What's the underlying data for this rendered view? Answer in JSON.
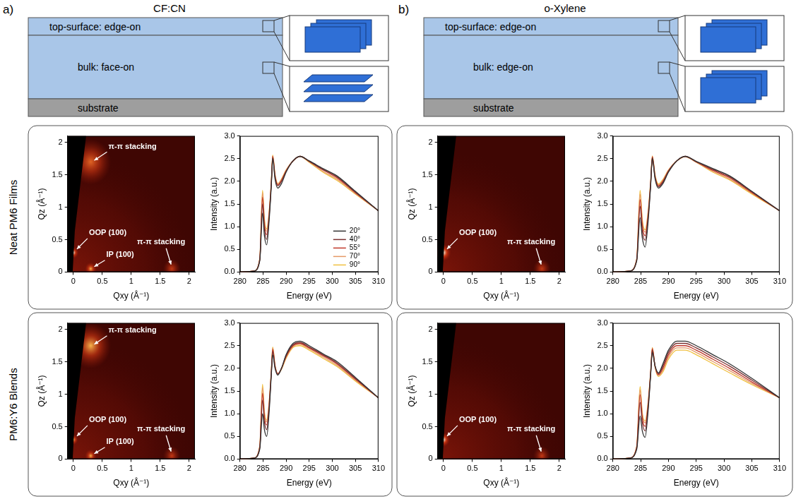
{
  "figure": {
    "panels": [
      {
        "letter": "a)",
        "title": "CF:CN",
        "layers": {
          "top": "top-surface: edge-on",
          "bulk": "bulk: face-on",
          "substrate": "substrate"
        }
      },
      {
        "letter": "b)",
        "title": "o-Xylene",
        "layers": {
          "top": "top-surface: edge-on",
          "bulk": "bulk: edge-on",
          "substrate": "substrate"
        }
      }
    ],
    "row_labels": [
      "Neat PM6 Films",
      "PM6:Y6 Blends"
    ]
  },
  "chart_data": [
    {
      "type": "scattering_map",
      "x_label": "Qxy (Å⁻¹)",
      "y_label": "Qz (Å⁻¹)",
      "xlim": [
        -0.1,
        2.1
      ],
      "ylim": [
        0,
        2.1
      ],
      "xticks": [
        0,
        0.5,
        1,
        1.5,
        2
      ],
      "yticks": [
        0,
        0.5,
        1,
        1.5,
        2
      ],
      "grid": false,
      "peaks": [
        {
          "label": "π-π stacking",
          "qxy": 0.3,
          "qz": 1.7,
          "width": 0.35,
          "intensity": 0.55
        },
        {
          "label": "OOP (100)",
          "qxy": 0,
          "qz": 0.3,
          "width": 0.09,
          "intensity": 0.9
        },
        {
          "label": "IP (100)",
          "qxy": 0.3,
          "qz": 0.05,
          "width": 0.1,
          "intensity": 0.7
        },
        {
          "label": "π-π stacking",
          "qxy": 1.7,
          "qz": 0.05,
          "width": 0.15,
          "intensity": 0.3
        }
      ]
    },
    {
      "type": "line",
      "x_label": "Energy (eV)",
      "y_label": "Intensity (a.u.)",
      "xlim": [
        280,
        310
      ],
      "xticks": [
        280,
        285,
        290,
        295,
        300,
        305,
        310
      ],
      "ylim": [
        0,
        3
      ],
      "yticks": [
        {
          "value": 0,
          "label": "0.0"
        },
        {
          "value": 0.5,
          "label": "0.5"
        },
        {
          "value": 1,
          "label": "1.0"
        },
        {
          "value": 1.5,
          "label": "1.5"
        },
        {
          "value": 2,
          "label": "2.0"
        },
        {
          "value": 2.5,
          "label": "2.5"
        },
        {
          "value": 3,
          "label": "3.0"
        }
      ],
      "grid": false,
      "legend": "bottom right",
      "x": [
        280,
        283,
        284.3,
        284.9,
        285.3,
        285.8,
        286.3,
        286.8,
        287.1,
        287.6,
        288.2,
        289,
        290,
        291.5,
        293,
        295,
        298,
        301,
        305,
        310
      ],
      "series": [
        {
          "name": "20°",
          "color": "#333333",
          "values": [
            0,
            0.02,
            0.25,
            1.3,
            0.8,
            0.6,
            1.1,
            1.9,
            2.5,
            2.05,
            1.85,
            1.95,
            2.2,
            2.45,
            2.55,
            2.45,
            2.28,
            2.12,
            1.78,
            1.35
          ]
        },
        {
          "name": "40°",
          "color": "#7a3030",
          "values": [
            0,
            0.02,
            0.27,
            1.5,
            0.95,
            0.72,
            1.18,
            1.95,
            2.52,
            2.1,
            1.9,
            2.0,
            2.22,
            2.45,
            2.55,
            2.44,
            2.26,
            2.1,
            1.76,
            1.35
          ]
        },
        {
          "name": "55°",
          "color": "#c0392b",
          "values": [
            0,
            0.02,
            0.28,
            1.65,
            1.05,
            0.82,
            1.23,
            1.97,
            2.55,
            2.12,
            1.92,
            2.02,
            2.23,
            2.45,
            2.55,
            2.44,
            2.25,
            2.08,
            1.75,
            1.35
          ]
        },
        {
          "name": "70°",
          "color": "#e59866",
          "values": [
            0,
            0.02,
            0.29,
            1.75,
            1.12,
            0.9,
            1.27,
            1.99,
            2.56,
            2.14,
            1.94,
            2.04,
            2.24,
            2.45,
            2.55,
            2.43,
            2.22,
            2.05,
            1.73,
            1.35
          ]
        },
        {
          "name": "90°",
          "color": "#f0c040",
          "values": [
            0,
            0.02,
            0.3,
            1.8,
            1.18,
            0.95,
            1.3,
            2.0,
            2.58,
            2.15,
            1.95,
            2.05,
            2.25,
            2.45,
            2.55,
            2.42,
            2.2,
            2.02,
            1.72,
            1.35
          ]
        }
      ]
    },
    {
      "type": "scattering_map",
      "x_label": "Qxy (Å⁻¹)",
      "y_label": "Qz (Å⁻¹)",
      "xlim": [
        -0.1,
        2.1
      ],
      "ylim": [
        0,
        2.1
      ],
      "xticks": [
        0,
        0.5,
        1,
        1.5,
        2
      ],
      "yticks": [
        0,
        0.5,
        1,
        1.5,
        2
      ],
      "grid": false,
      "peaks": [
        {
          "label": "OOP (100)",
          "qxy": 0,
          "qz": 0.3,
          "width": 0.13,
          "intensity": 1.0
        },
        {
          "label": "π-π stacking",
          "qxy": 1.7,
          "qz": 0.05,
          "width": 0.15,
          "intensity": 0.3
        }
      ]
    },
    {
      "type": "line",
      "x_label": "Energy (eV)",
      "y_label": "Intensity (a.u.)",
      "xlim": [
        280,
        310
      ],
      "xticks": [
        280,
        285,
        290,
        295,
        300,
        305,
        310
      ],
      "ylim": [
        0,
        3
      ],
      "yticks": [
        {
          "value": 0,
          "label": "0.0"
        },
        {
          "value": 0.5,
          "label": "0.5"
        },
        {
          "value": 1,
          "label": "1.0"
        },
        {
          "value": 1.5,
          "label": "1.5"
        },
        {
          "value": 2,
          "label": "2.0"
        },
        {
          "value": 2.5,
          "label": "2.5"
        },
        {
          "value": 3,
          "label": "3.0"
        }
      ],
      "grid": false,
      "x": [
        280,
        283,
        284.3,
        284.9,
        285.3,
        285.8,
        286.3,
        286.8,
        287.1,
        287.6,
        288.2,
        289,
        290,
        291.5,
        293,
        295,
        298,
        301,
        305,
        310
      ],
      "series": [
        {
          "color": "#333333",
          "values": [
            0,
            0.02,
            0.25,
            1.2,
            0.75,
            0.55,
            1.05,
            1.9,
            2.5,
            2.05,
            1.85,
            1.95,
            2.2,
            2.45,
            2.55,
            2.44,
            2.28,
            2.12,
            1.78,
            1.35
          ]
        },
        {
          "color": "#7a3030",
          "values": [
            0,
            0.02,
            0.27,
            1.45,
            0.9,
            0.7,
            1.15,
            1.93,
            2.52,
            2.08,
            1.88,
            1.98,
            2.22,
            2.45,
            2.55,
            2.43,
            2.26,
            2.1,
            1.77,
            1.35
          ]
        },
        {
          "color": "#c0392b",
          "values": [
            0,
            0.02,
            0.28,
            1.6,
            1.02,
            0.8,
            1.2,
            1.96,
            2.54,
            2.1,
            1.9,
            2.0,
            2.23,
            2.45,
            2.55,
            2.43,
            2.24,
            2.08,
            1.75,
            1.35
          ]
        },
        {
          "color": "#e59866",
          "values": [
            0,
            0.02,
            0.29,
            1.72,
            1.1,
            0.88,
            1.25,
            1.98,
            2.55,
            2.12,
            1.92,
            2.02,
            2.24,
            2.45,
            2.54,
            2.42,
            2.22,
            2.05,
            1.74,
            1.35
          ]
        },
        {
          "color": "#f0c040",
          "values": [
            0,
            0.02,
            0.3,
            1.8,
            1.16,
            0.93,
            1.28,
            2.0,
            2.56,
            2.14,
            1.94,
            2.04,
            2.25,
            2.45,
            2.54,
            2.42,
            2.2,
            2.03,
            1.72,
            1.35
          ]
        }
      ]
    },
    {
      "type": "scattering_map",
      "x_label": "Qxy (Å⁻¹)",
      "y_label": "Qz (Å⁻¹)",
      "xlim": [
        -0.1,
        2.1
      ],
      "ylim": [
        0,
        2.1
      ],
      "xticks": [
        0,
        0.5,
        1,
        1.5,
        2
      ],
      "yticks": [
        0,
        0.5,
        1,
        1.5,
        2
      ],
      "grid": false,
      "peaks": [
        {
          "label": "π-π stacking",
          "qxy": 0.3,
          "qz": 1.75,
          "width": 0.35,
          "intensity": 0.65
        },
        {
          "label": "OOP (100)",
          "qxy": 0,
          "qz": 0.3,
          "width": 0.08,
          "intensity": 0.85
        },
        {
          "label": "IP (100)",
          "qxy": 0.3,
          "qz": 0.05,
          "width": 0.1,
          "intensity": 0.65
        },
        {
          "label": "π-π stacking",
          "qxy": 1.7,
          "qz": 0.05,
          "width": 0.15,
          "intensity": 0.25
        }
      ]
    },
    {
      "type": "line",
      "x_label": "Energy (eV)",
      "y_label": "Intensity (a.u.)",
      "xlim": [
        280,
        310
      ],
      "xticks": [
        280,
        285,
        290,
        295,
        300,
        305,
        310
      ],
      "ylim": [
        0,
        3
      ],
      "yticks": [
        {
          "value": 0,
          "label": "0.0"
        },
        {
          "value": 0.5,
          "label": "0.5"
        },
        {
          "value": 1,
          "label": "1.0"
        },
        {
          "value": 1.5,
          "label": "1.5"
        },
        {
          "value": 2,
          "label": "2.0"
        },
        {
          "value": 2.5,
          "label": "2.5"
        },
        {
          "value": 3,
          "label": "3.0"
        }
      ],
      "grid": false,
      "x": [
        280,
        283,
        284.3,
        284.9,
        285.3,
        285.8,
        286.3,
        286.8,
        287.1,
        287.6,
        288.2,
        289,
        290,
        291.5,
        293,
        295,
        298,
        301,
        305,
        310
      ],
      "series": [
        {
          "color": "#333333",
          "values": [
            0,
            0.02,
            0.22,
            1.0,
            0.65,
            0.5,
            1.0,
            1.85,
            2.3,
            2.0,
            1.85,
            2.0,
            2.3,
            2.55,
            2.6,
            2.5,
            2.32,
            2.15,
            1.8,
            1.35
          ]
        },
        {
          "color": "#7a3030",
          "values": [
            0,
            0.02,
            0.25,
            1.3,
            0.82,
            0.65,
            1.1,
            1.9,
            2.38,
            2.03,
            1.87,
            2.0,
            2.28,
            2.52,
            2.57,
            2.47,
            2.3,
            2.12,
            1.78,
            1.35
          ]
        },
        {
          "color": "#c0392b",
          "values": [
            0,
            0.02,
            0.27,
            1.45,
            0.92,
            0.75,
            1.15,
            1.92,
            2.42,
            2.05,
            1.88,
            2.0,
            2.26,
            2.5,
            2.55,
            2.45,
            2.28,
            2.1,
            1.76,
            1.35
          ]
        },
        {
          "color": "#e59866",
          "values": [
            0,
            0.02,
            0.28,
            1.58,
            1.0,
            0.82,
            1.2,
            1.94,
            2.45,
            2.06,
            1.88,
            1.99,
            2.24,
            2.48,
            2.53,
            2.43,
            2.25,
            2.07,
            1.74,
            1.35
          ]
        },
        {
          "color": "#f0c040",
          "values": [
            0,
            0.02,
            0.29,
            1.65,
            1.05,
            0.86,
            1.22,
            1.95,
            2.47,
            2.07,
            1.88,
            1.98,
            2.22,
            2.46,
            2.5,
            2.4,
            2.22,
            2.04,
            1.72,
            1.35
          ]
        }
      ]
    },
    {
      "type": "scattering_map",
      "x_label": "Qxy (Å⁻¹)",
      "y_label": "Qz (Å⁻¹)",
      "xlim": [
        -0.1,
        2.1
      ],
      "ylim": [
        0,
        2.1
      ],
      "xticks": [
        0,
        0.5,
        1,
        1.5,
        2
      ],
      "yticks": [
        0,
        0.5,
        1,
        1.5,
        2
      ],
      "grid": false,
      "peaks": [
        {
          "label": "OOP (100)",
          "qxy": 0,
          "qz": 0.3,
          "width": 0.11,
          "intensity": 1.0
        },
        {
          "label": "π-π stacking",
          "qxy": 1.7,
          "qz": 0.05,
          "width": 0.15,
          "intensity": 0.25
        }
      ]
    },
    {
      "type": "line",
      "x_label": "Energy (eV)",
      "y_label": "Intensity (a.u.)",
      "xlim": [
        280,
        310
      ],
      "xticks": [
        280,
        285,
        290,
        295,
        300,
        305,
        310
      ],
      "ylim": [
        0,
        3
      ],
      "yticks": [
        {
          "value": 0,
          "label": "0.0"
        },
        {
          "value": 0.5,
          "label": "0.5"
        },
        {
          "value": 1,
          "label": "1.0"
        },
        {
          "value": 1.5,
          "label": "1.5"
        },
        {
          "value": 2,
          "label": "2.0"
        },
        {
          "value": 2.5,
          "label": "2.5"
        },
        {
          "value": 3,
          "label": "3.0"
        }
      ],
      "grid": false,
      "x": [
        280,
        283,
        284.3,
        284.9,
        285.3,
        285.8,
        286.3,
        286.8,
        287.1,
        287.6,
        288.2,
        289,
        290,
        291.5,
        293,
        295,
        298,
        301,
        305,
        310
      ],
      "series": [
        {
          "color": "#333333",
          "values": [
            0,
            0.02,
            0.22,
            0.95,
            0.62,
            0.48,
            1.0,
            1.85,
            2.35,
            2.05,
            1.9,
            2.1,
            2.4,
            2.6,
            2.6,
            2.5,
            2.3,
            2.1,
            1.78,
            1.35
          ]
        },
        {
          "color": "#7a3030",
          "values": [
            0,
            0.02,
            0.25,
            1.25,
            0.8,
            0.62,
            1.08,
            1.88,
            2.4,
            2.05,
            1.88,
            2.05,
            2.35,
            2.55,
            2.55,
            2.45,
            2.25,
            2.05,
            1.74,
            1.35
          ]
        },
        {
          "color": "#c0392b",
          "values": [
            0,
            0.02,
            0.27,
            1.42,
            0.9,
            0.72,
            1.14,
            1.9,
            2.43,
            2.04,
            1.86,
            2.0,
            2.3,
            2.5,
            2.5,
            2.4,
            2.2,
            2.0,
            1.7,
            1.35
          ]
        },
        {
          "color": "#e59866",
          "values": [
            0,
            0.02,
            0.28,
            1.53,
            0.97,
            0.8,
            1.18,
            1.92,
            2.45,
            2.03,
            1.84,
            1.96,
            2.25,
            2.45,
            2.45,
            2.35,
            2.15,
            1.95,
            1.67,
            1.35
          ]
        },
        {
          "color": "#f0c040",
          "values": [
            0,
            0.02,
            0.29,
            1.6,
            1.02,
            0.84,
            1.2,
            1.93,
            2.46,
            2.02,
            1.82,
            1.92,
            2.2,
            2.4,
            2.4,
            2.3,
            2.1,
            1.9,
            1.64,
            1.35
          ]
        }
      ]
    }
  ]
}
